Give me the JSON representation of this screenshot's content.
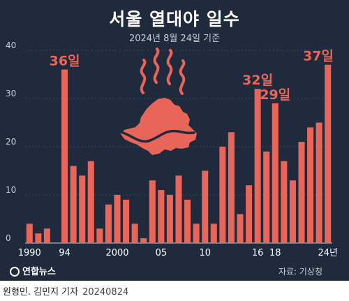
{
  "header": {
    "title": "서울 열대야 일수",
    "subtitle": "2024년 8월 24일 기준"
  },
  "footer": {
    "logo": "연합뉴스",
    "source": "자료: 기상청",
    "credit": "원형민. 김민지 기자",
    "date": "20240824"
  },
  "chart_data": {
    "type": "bar",
    "title": "서울 열대야 일수",
    "subtitle": "2024년 8월 24일 기준",
    "categories": [
      "1990",
      "1991",
      "1992",
      "1993",
      "1994",
      "1995",
      "1996",
      "1997",
      "1998",
      "1999",
      "2000",
      "2001",
      "2002",
      "2003",
      "2004",
      "2005",
      "2006",
      "2007",
      "2008",
      "2009",
      "2010",
      "2011",
      "2012",
      "2013",
      "2014",
      "2015",
      "2016",
      "2017",
      "2018",
      "2019",
      "2020",
      "2021",
      "2022",
      "2023",
      "2024"
    ],
    "values": [
      4,
      2,
      3,
      0,
      36,
      16,
      14,
      17,
      3,
      8,
      10,
      9,
      4,
      1,
      13,
      11,
      10,
      14,
      9,
      4,
      15,
      4,
      20,
      23,
      6,
      12,
      32,
      19,
      29,
      17,
      13,
      21,
      24,
      25,
      37
    ],
    "ylim": [
      0,
      40
    ],
    "yticks": [
      0,
      10,
      20,
      30,
      40
    ],
    "x_tick_labels": [
      {
        "index": 0,
        "label": "1990"
      },
      {
        "index": 4,
        "label": "94"
      },
      {
        "index": 10,
        "label": "2000"
      },
      {
        "index": 15,
        "label": "05"
      },
      {
        "index": 20,
        "label": "10"
      },
      {
        "index": 26,
        "label": "16"
      },
      {
        "index": 28,
        "label": "18"
      },
      {
        "index": 34,
        "label": "24년"
      }
    ],
    "data_labels": [
      {
        "index": 4,
        "label": "36일"
      },
      {
        "index": 26,
        "label": "32일"
      },
      {
        "index": 28,
        "label": "29일"
      },
      {
        "index": 34,
        "label": "37일"
      }
    ],
    "grid": true,
    "bar_color": "#e8655a",
    "background_color": "#1f2a3c"
  },
  "illustration": {
    "icon": "seoul-map-heat-icon",
    "color": "#e8655a"
  }
}
